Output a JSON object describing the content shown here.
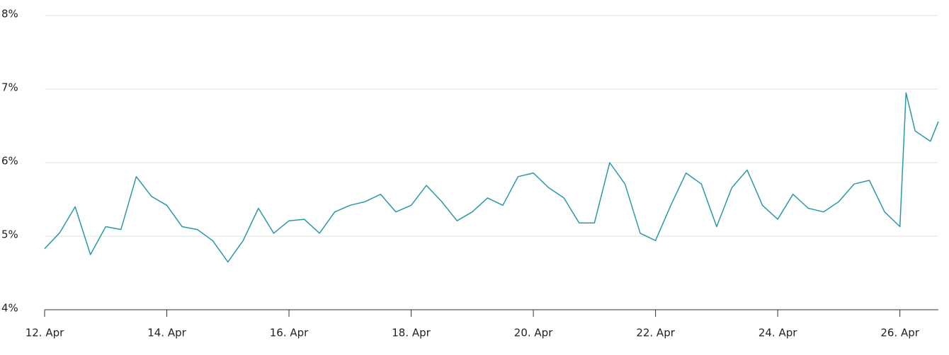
{
  "chart_data": {
    "type": "line",
    "x": [
      12,
      12.25,
      12.5,
      12.75,
      13,
      13.25,
      13.5,
      13.75,
      14,
      14.25,
      14.5,
      14.75,
      15,
      15.25,
      15.5,
      15.75,
      16,
      16.25,
      16.5,
      16.75,
      17,
      17.25,
      17.5,
      17.75,
      18,
      18.25,
      18.5,
      18.75,
      19,
      19.25,
      19.5,
      19.75,
      20,
      20.25,
      20.5,
      20.75,
      21,
      21.25,
      21.5,
      21.75,
      22,
      22.25,
      22.5,
      22.75,
      23,
      23.25,
      23.5,
      23.75,
      24,
      24.25,
      24.5,
      24.75,
      25,
      25.25,
      25.5,
      25.75,
      26,
      26.1,
      26.25,
      26.5,
      26.63
    ],
    "series": [
      {
        "color": "#2b98a6",
        "values": [
          4.83,
          5.05,
          5.4,
          4.75,
          5.13,
          5.09,
          5.81,
          5.54,
          5.42,
          5.13,
          5.09,
          4.94,
          4.65,
          4.94,
          5.38,
          5.04,
          5.21,
          5.23,
          5.04,
          5.33,
          5.42,
          5.47,
          5.57,
          5.33,
          5.42,
          5.69,
          5.47,
          5.21,
          5.33,
          5.52,
          5.42,
          5.81,
          5.86,
          5.66,
          5.52,
          5.18,
          5.18,
          6.0,
          5.71,
          5.04,
          4.94,
          5.42,
          5.86,
          5.71,
          5.13,
          5.66,
          5.9,
          5.42,
          5.23,
          5.57,
          5.38,
          5.33,
          5.47,
          5.71,
          5.76,
          5.33,
          5.13,
          6.95,
          6.43,
          6.29,
          6.56
        ]
      }
    ],
    "xlim": [
      12,
      26.63
    ],
    "xticks": [
      {
        "value": 12,
        "label": "12. Apr"
      },
      {
        "value": 14,
        "label": "14. Apr"
      },
      {
        "value": 16,
        "label": "16. Apr"
      },
      {
        "value": 18,
        "label": "18. Apr"
      },
      {
        "value": 20,
        "label": "20. Apr"
      },
      {
        "value": 22,
        "label": "22. Apr"
      },
      {
        "value": 24,
        "label": "24. Apr"
      },
      {
        "value": 26,
        "label": "26. Apr"
      }
    ],
    "ylim": [
      4,
      8
    ],
    "yticks": [
      {
        "value": 4,
        "label": "4%"
      },
      {
        "value": 5,
        "label": "5%"
      },
      {
        "value": 6,
        "label": "6%"
      },
      {
        "value": 7,
        "label": "7%"
      },
      {
        "value": 8,
        "label": "8%"
      }
    ],
    "grid": true
  }
}
